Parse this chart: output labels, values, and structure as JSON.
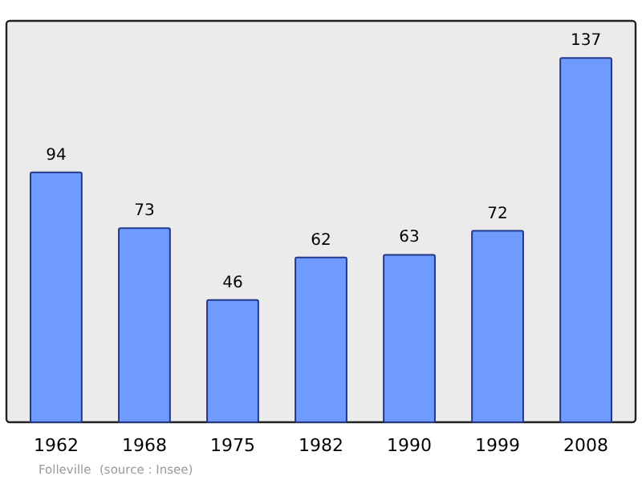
{
  "chart_data": {
    "type": "bar",
    "categories": [
      "1962",
      "1968",
      "1975",
      "1982",
      "1990",
      "1999",
      "2008"
    ],
    "values": [
      94,
      73,
      46,
      62,
      63,
      72,
      137
    ],
    "color": "#6f9bff",
    "ylim": [
      0,
      151
    ],
    "data_labels": true,
    "annotations": [
      "Folleville",
      "(source : Insee)"
    ]
  }
}
